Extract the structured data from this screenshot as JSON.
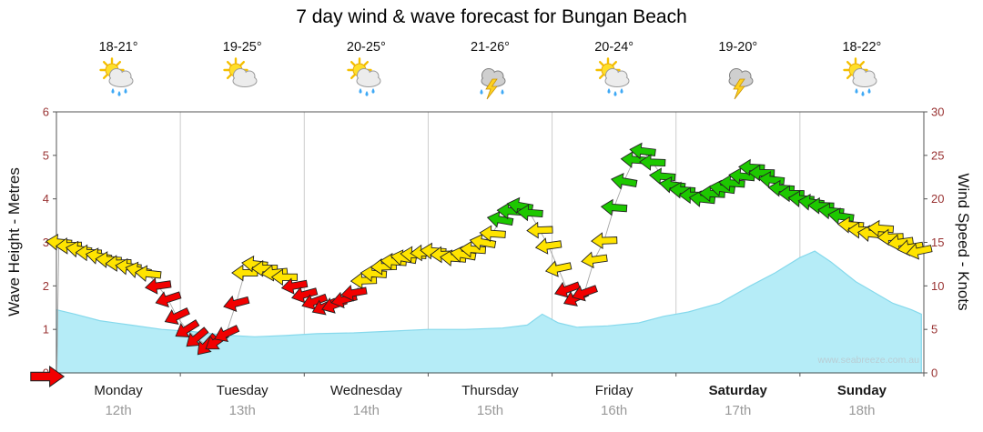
{
  "title": "7 day wind & wave forecast for Bungan Beach",
  "watermark": "www.seabreeze.com.au",
  "axes": {
    "left_label": "Wave Height - Metres",
    "right_label": "Wind Speed - Knots"
  },
  "days": [
    {
      "name": "Monday",
      "date": "12th",
      "temp": "18-21°",
      "icon": "sun-cloud-rain",
      "weekend": false
    },
    {
      "name": "Tuesday",
      "date": "13th",
      "temp": "19-25°",
      "icon": "sun-cloud",
      "weekend": false
    },
    {
      "name": "Wednesday",
      "date": "14th",
      "temp": "20-25°",
      "icon": "sun-cloud-rain",
      "weekend": false
    },
    {
      "name": "Thursday",
      "date": "15th",
      "temp": "21-26°",
      "icon": "storm-rain",
      "weekend": false
    },
    {
      "name": "Friday",
      "date": "16th",
      "temp": "20-24°",
      "icon": "sun-cloud-rain",
      "weekend": false
    },
    {
      "name": "Saturday",
      "date": "17th",
      "temp": "19-20°",
      "icon": "storm",
      "weekend": true
    },
    {
      "name": "Sunday",
      "date": "18th",
      "temp": "18-22°",
      "icon": "sun-cloud-rain",
      "weekend": true
    }
  ],
  "chart_data": {
    "type": "area",
    "overlay": "wind-direction-arrows",
    "x_unit": "days",
    "x_range": [
      0,
      7
    ],
    "wave": {
      "label": "Wave Height - Metres",
      "max": 6,
      "ticks": [
        0,
        1,
        2,
        3,
        4,
        5,
        6
      ],
      "points": [
        [
          0,
          1.45
        ],
        [
          0.15,
          1.35
        ],
        [
          0.35,
          1.2
        ],
        [
          0.6,
          1.1
        ],
        [
          0.85,
          1.0
        ],
        [
          1.1,
          0.95
        ],
        [
          1.35,
          0.87
        ],
        [
          1.6,
          0.83
        ],
        [
          1.85,
          0.86
        ],
        [
          2.1,
          0.9
        ],
        [
          2.4,
          0.92
        ],
        [
          2.7,
          0.96
        ],
        [
          3.0,
          1.0
        ],
        [
          3.3,
          1.0
        ],
        [
          3.6,
          1.03
        ],
        [
          3.8,
          1.1
        ],
        [
          3.92,
          1.35
        ],
        [
          4.05,
          1.15
        ],
        [
          4.2,
          1.05
        ],
        [
          4.45,
          1.08
        ],
        [
          4.7,
          1.15
        ],
        [
          4.9,
          1.3
        ],
        [
          5.1,
          1.4
        ],
        [
          5.35,
          1.6
        ],
        [
          5.6,
          2.0
        ],
        [
          5.8,
          2.3
        ],
        [
          6.0,
          2.65
        ],
        [
          6.12,
          2.8
        ],
        [
          6.25,
          2.55
        ],
        [
          6.45,
          2.1
        ],
        [
          6.6,
          1.85
        ],
        [
          6.75,
          1.6
        ],
        [
          6.9,
          1.45
        ],
        [
          6.98,
          1.35
        ]
      ]
    },
    "wind": {
      "label": "Wind Speed - Knots",
      "max": 30,
      "ticks": [
        0,
        5,
        10,
        15,
        20,
        25,
        30
      ],
      "color_legend": {
        "r": "light",
        "y": "moderate",
        "g": "fresh"
      },
      "points": [
        [
          0.02,
          15.0,
          185,
          "y"
        ],
        [
          0.1,
          14.6,
          178,
          "y"
        ],
        [
          0.18,
          14.2,
          188,
          "y"
        ],
        [
          0.26,
          13.8,
          182,
          "y"
        ],
        [
          0.34,
          13.4,
          190,
          "y"
        ],
        [
          0.42,
          13.0,
          184,
          "y"
        ],
        [
          0.5,
          12.6,
          178,
          "y"
        ],
        [
          0.58,
          12.2,
          186,
          "y"
        ],
        [
          0.66,
          11.8,
          192,
          "y"
        ],
        [
          0.74,
          11.4,
          186,
          "y"
        ],
        [
          0.82,
          10.0,
          172,
          "r"
        ],
        [
          0.9,
          8.5,
          162,
          "r"
        ],
        [
          0.97,
          6.5,
          155,
          "r"
        ],
        [
          1.05,
          5.0,
          148,
          "r"
        ],
        [
          1.13,
          4.0,
          140,
          "r"
        ],
        [
          1.21,
          3.2,
          132,
          "r"
        ],
        [
          1.29,
          3.6,
          145,
          "r"
        ],
        [
          1.37,
          4.5,
          155,
          "r"
        ],
        [
          1.45,
          8.0,
          165,
          "r"
        ],
        [
          1.52,
          11.5,
          180,
          "y"
        ],
        [
          1.6,
          12.5,
          186,
          "y"
        ],
        [
          1.68,
          12.0,
          180,
          "y"
        ],
        [
          1.76,
          11.5,
          174,
          "y"
        ],
        [
          1.84,
          11.0,
          180,
          "y"
        ],
        [
          1.92,
          10.0,
          170,
          "r"
        ],
        [
          2.0,
          9.0,
          165,
          "r"
        ],
        [
          2.08,
          8.2,
          160,
          "r"
        ],
        [
          2.16,
          7.6,
          155,
          "r"
        ],
        [
          2.24,
          7.8,
          160,
          "r"
        ],
        [
          2.32,
          8.4,
          166,
          "r"
        ],
        [
          2.4,
          9.2,
          170,
          "r"
        ],
        [
          2.48,
          10.6,
          178,
          "y"
        ],
        [
          2.56,
          11.4,
          184,
          "y"
        ],
        [
          2.64,
          12.2,
          178,
          "y"
        ],
        [
          2.72,
          12.8,
          184,
          "y"
        ],
        [
          2.8,
          13.2,
          190,
          "y"
        ],
        [
          2.88,
          13.6,
          184,
          "y"
        ],
        [
          2.96,
          13.8,
          178,
          "y"
        ],
        [
          3.04,
          14.0,
          184,
          "y"
        ],
        [
          3.12,
          13.6,
          178,
          "y"
        ],
        [
          3.2,
          13.2,
          184,
          "y"
        ],
        [
          3.28,
          13.6,
          190,
          "y"
        ],
        [
          3.36,
          14.2,
          184,
          "y"
        ],
        [
          3.44,
          15.0,
          190,
          "y"
        ],
        [
          3.52,
          16.0,
          184,
          "y"
        ],
        [
          3.58,
          17.6,
          190,
          "g"
        ],
        [
          3.66,
          18.6,
          184,
          "g"
        ],
        [
          3.74,
          19.2,
          190,
          "g"
        ],
        [
          3.82,
          18.4,
          184,
          "g"
        ],
        [
          3.9,
          16.4,
          178,
          "y"
        ],
        [
          3.97,
          14.6,
          172,
          "y"
        ],
        [
          4.05,
          12.0,
          168,
          "y"
        ],
        [
          4.12,
          9.6,
          160,
          "r"
        ],
        [
          4.19,
          8.6,
          155,
          "r"
        ],
        [
          4.26,
          9.2,
          160,
          "r"
        ],
        [
          4.34,
          13.0,
          172,
          "y"
        ],
        [
          4.42,
          15.2,
          178,
          "y"
        ],
        [
          4.5,
          19.0,
          184,
          "g"
        ],
        [
          4.58,
          22.0,
          190,
          "g"
        ],
        [
          4.66,
          24.5,
          184,
          "g"
        ],
        [
          4.73,
          25.5,
          187,
          "g"
        ],
        [
          4.81,
          24.2,
          182,
          "g"
        ],
        [
          4.89,
          22.6,
          185,
          "g"
        ],
        [
          4.97,
          21.6,
          188,
          "g"
        ],
        [
          5.05,
          21.0,
          184,
          "g"
        ],
        [
          5.13,
          20.4,
          181,
          "g"
        ],
        [
          5.21,
          20.0,
          186,
          "g"
        ],
        [
          5.29,
          20.6,
          183,
          "g"
        ],
        [
          5.37,
          21.2,
          188,
          "g"
        ],
        [
          5.45,
          21.8,
          184,
          "g"
        ],
        [
          5.53,
          22.6,
          186,
          "g"
        ],
        [
          5.61,
          23.6,
          183,
          "g"
        ],
        [
          5.69,
          23.0,
          181,
          "g"
        ],
        [
          5.77,
          22.2,
          186,
          "g"
        ],
        [
          5.85,
          21.2,
          184,
          "g"
        ],
        [
          5.93,
          20.6,
          181,
          "g"
        ],
        [
          6.01,
          20.0,
          184,
          "g"
        ],
        [
          6.09,
          19.6,
          187,
          "g"
        ],
        [
          6.17,
          19.2,
          182,
          "g"
        ],
        [
          6.25,
          18.6,
          185,
          "g"
        ],
        [
          6.33,
          18.0,
          188,
          "g"
        ],
        [
          6.41,
          17.0,
          184,
          "y"
        ],
        [
          6.49,
          16.4,
          181,
          "y"
        ],
        [
          6.57,
          16.0,
          186,
          "y"
        ],
        [
          6.65,
          16.6,
          184,
          "y"
        ],
        [
          6.73,
          15.6,
          178,
          "y"
        ],
        [
          6.81,
          15.0,
          172,
          "y"
        ],
        [
          6.89,
          14.4,
          170,
          "y"
        ],
        [
          6.96,
          14.0,
          168,
          "y"
        ]
      ]
    },
    "now_marker": {
      "wind_knots": 0,
      "dir": 0,
      "color": "r"
    }
  },
  "colors": {
    "area_fill": "#b5ecf7",
    "area_line": "#86d9ec",
    "grid": "#cccccc",
    "frame": "#555555",
    "tick_text": "#993333",
    "connector": "#a6a6a6",
    "arrow": {
      "r": "#f20000",
      "y": "#ffe400",
      "g": "#1dc800"
    },
    "day_name": "#1a1a1a",
    "day_date": "#999999",
    "rain_drop": "#3fa9f5",
    "lightning": "#ffd21e"
  }
}
